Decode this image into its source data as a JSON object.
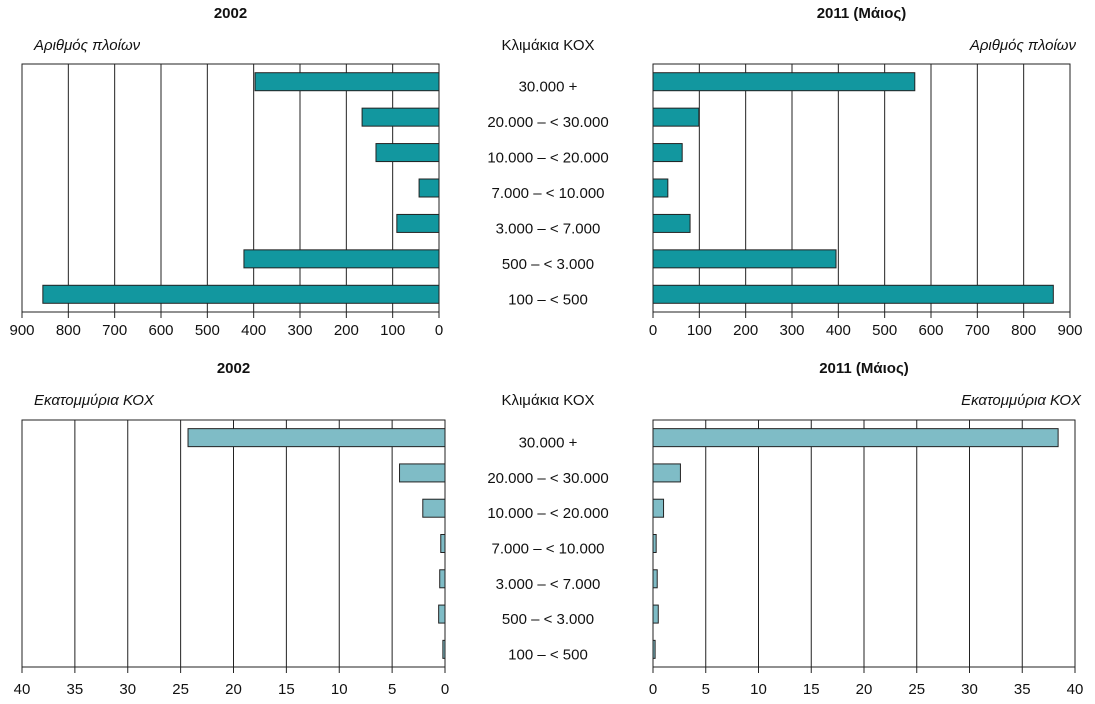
{
  "chart_data": [
    {
      "type": "bar",
      "orientation": "horizontal",
      "title": "2002",
      "xlabel": "Αριθμός πλοίων",
      "category_label": "Κλιμάκια ΚΟΧ",
      "categories": [
        "30.000 +",
        "20.000 – < 30.000",
        "10.000 – < 20.000",
        "7.000 – < 10.000",
        "3.000 – < 7.000",
        "500 – < 3.000",
        "100 – < 500"
      ],
      "values": [
        397,
        166,
        136,
        43,
        91,
        421,
        855
      ],
      "color": "#12979f",
      "xlim": [
        0,
        900
      ],
      "xticks": [
        0,
        100,
        200,
        300,
        400,
        500,
        600,
        700,
        800,
        900
      ],
      "x_reversed": true,
      "grid": true
    },
    {
      "type": "bar",
      "orientation": "horizontal",
      "title": "2011 (Μάιος)",
      "xlabel": "Αριθμός πλοίων",
      "values": [
        565,
        99,
        63,
        32,
        80,
        395,
        864
      ],
      "color": "#12979f",
      "xlim": [
        0,
        900
      ],
      "xticks": [
        0,
        100,
        200,
        300,
        400,
        500,
        600,
        700,
        800,
        900
      ],
      "x_reversed": false,
      "grid": true
    },
    {
      "type": "bar",
      "orientation": "horizontal",
      "title": "2002",
      "xlabel": "Εκατομμύρια ΚΟΧ",
      "category_label": "Κλιμάκια ΚΟΧ",
      "categories": [
        "30.000 +",
        "20.000 – < 30.000",
        "10.000 – < 20.000",
        "7.000 – < 10.000",
        "3.000 – < 7.000",
        "500 – < 3.000",
        "100 – < 500"
      ],
      "values": [
        24.3,
        4.3,
        2.1,
        0.4,
        0.5,
        0.6,
        0.2
      ],
      "color": "#7fbcc6",
      "xlim": [
        0,
        40
      ],
      "xticks": [
        0,
        5,
        10,
        15,
        20,
        25,
        30,
        35,
        40
      ],
      "x_reversed": true,
      "grid": true
    },
    {
      "type": "bar",
      "orientation": "horizontal",
      "title": "2011 (Μάιος)",
      "xlabel": "Εκατομμύρια ΚΟΧ",
      "values": [
        38.4,
        2.6,
        1.0,
        0.3,
        0.4,
        0.5,
        0.2
      ],
      "color": "#7fbcc6",
      "xlim": [
        0,
        40
      ],
      "xticks": [
        0,
        5,
        10,
        15,
        20,
        25,
        30,
        35,
        40
      ],
      "x_reversed": false,
      "grid": true
    }
  ]
}
